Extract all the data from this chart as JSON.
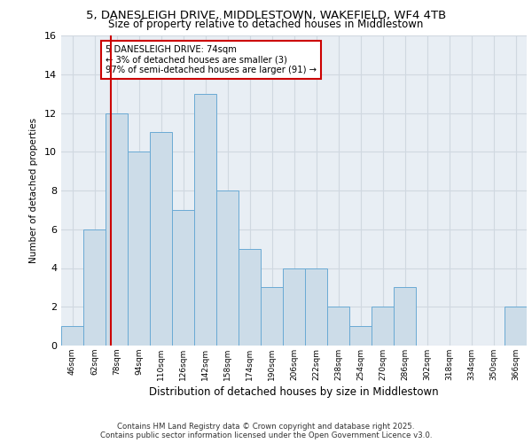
{
  "title_line1": "5, DANESLEIGH DRIVE, MIDDLESTOWN, WAKEFIELD, WF4 4TB",
  "title_line2": "Size of property relative to detached houses in Middlestown",
  "xlabel": "Distribution of detached houses by size in Middlestown",
  "ylabel": "Number of detached properties",
  "categories": [
    "46sqm",
    "62sqm",
    "78sqm",
    "94sqm",
    "110sqm",
    "126sqm",
    "142sqm",
    "158sqm",
    "174sqm",
    "190sqm",
    "206sqm",
    "222sqm",
    "238sqm",
    "254sqm",
    "270sqm",
    "286sqm",
    "302sqm",
    "318sqm",
    "334sqm",
    "350sqm",
    "366sqm"
  ],
  "values": [
    1,
    6,
    12,
    10,
    11,
    7,
    13,
    8,
    5,
    3,
    4,
    4,
    2,
    1,
    2,
    3,
    0,
    0,
    0,
    0,
    2
  ],
  "bar_color": "#ccdce8",
  "bar_edge_color": "#6aaad4",
  "highlight_color": "#cc0000",
  "annotation_text": "5 DANESLEIGH DRIVE: 74sqm\n← 3% of detached houses are smaller (3)\n97% of semi-detached houses are larger (91) →",
  "annotation_box_color": "#cc0000",
  "ylim": [
    0,
    16
  ],
  "yticks": [
    0,
    2,
    4,
    6,
    8,
    10,
    12,
    14,
    16
  ],
  "grid_color": "#d0d8e0",
  "background_color": "#e8eef4",
  "footer_line1": "Contains HM Land Registry data © Crown copyright and database right 2025.",
  "footer_line2": "Contains public sector information licensed under the Open Government Licence v3.0."
}
